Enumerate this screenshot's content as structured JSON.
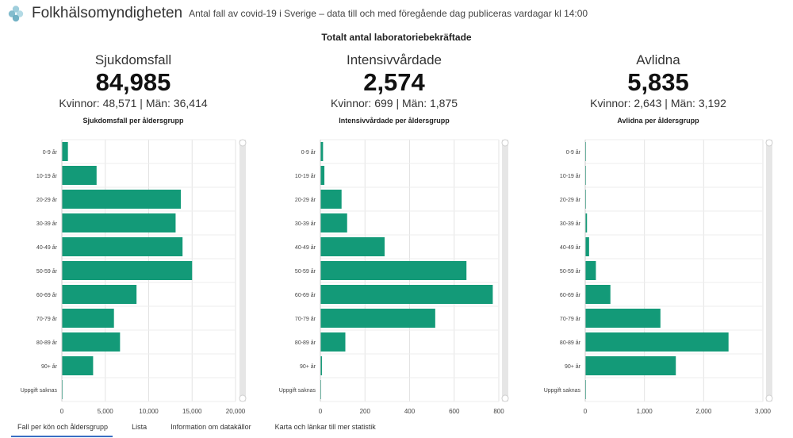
{
  "header": {
    "org_name": "Folkhälsomyndigheten",
    "subtitle": "Antal fall av covid-19 i Sverige – data till och med föregående dag publiceras vardagar kl 14:00"
  },
  "main_title": "Totalt antal laboratoriebekräftade",
  "kpis": [
    {
      "label": "Sjukdomsfall",
      "value": "84,985",
      "split": "Kvinnor: 48,571 | Män: 36,414"
    },
    {
      "label": "Intensivvårdade",
      "value": "2,574",
      "split": "Kvinnor: 699 | Män: 1,875"
    },
    {
      "label": "Avlidna",
      "value": "5,835",
      "split": "Kvinnor: 2,643 | Män: 3,192"
    }
  ],
  "panels": [
    {
      "title": "Sjukdomsfall per åldersgrupp"
    },
    {
      "title": "Intensivvårdade per åldersgrupp"
    },
    {
      "title": "Avlidna per åldersgrupp"
    }
  ],
  "tabs": [
    {
      "label": "Fall per kön och åldersgrupp",
      "active": true
    },
    {
      "label": "Lista",
      "active": false
    },
    {
      "label": "Information om datakällor",
      "active": false
    },
    {
      "label": "Karta och länkar till mer statistik",
      "active": false
    }
  ],
  "colors": {
    "bar": "#139a78",
    "grid": "#e3e3e3",
    "scrollbar": "#e6e6e6"
  },
  "chart_data": [
    {
      "type": "bar",
      "orientation": "horizontal",
      "title": "Sjukdomsfall per åldersgrupp",
      "categories": [
        "0-9 år",
        "10-19 år",
        "20-29 år",
        "30-39 år",
        "40-49 år",
        "50-59 år",
        "60-69 år",
        "70-79 år",
        "80-89 år",
        "90+ år",
        "Uppgift saknas"
      ],
      "values": [
        700,
        4000,
        13700,
        13100,
        13900,
        15000,
        8600,
        6000,
        6700,
        3600,
        80
      ],
      "xlim": [
        0,
        20000
      ],
      "xticks": [
        "0",
        "5,000",
        "10,000",
        "15,000",
        "20,000"
      ],
      "grid": true
    },
    {
      "type": "bar",
      "orientation": "horizontal",
      "title": "Intensivvårdade per åldersgrupp",
      "categories": [
        "0-9 år",
        "10-19 år",
        "20-29 år",
        "30-39 år",
        "40-49 år",
        "50-59 år",
        "60-69 år",
        "70-79 år",
        "80-89 år",
        "90+ år",
        "Uppgift saknas"
      ],
      "values": [
        12,
        18,
        95,
        120,
        288,
        655,
        773,
        515,
        112,
        7,
        2
      ],
      "xlim": [
        0,
        800
      ],
      "xticks": [
        "0",
        "200",
        "400",
        "600",
        "800"
      ],
      "grid": true
    },
    {
      "type": "bar",
      "orientation": "horizontal",
      "title": "Avlidna per åldersgrupp",
      "categories": [
        "0-9 år",
        "10-19 år",
        "20-29 år",
        "30-39 år",
        "40-49 år",
        "50-59 år",
        "60-69 år",
        "70-79 år",
        "80-89 år",
        "90+ år",
        "Uppgift saknas"
      ],
      "values": [
        2,
        2,
        10,
        30,
        65,
        180,
        425,
        1270,
        2420,
        1530,
        5
      ],
      "xlim": [
        0,
        3000
      ],
      "xticks": [
        "0",
        "1,000",
        "2,000",
        "3,000"
      ],
      "grid": true
    }
  ]
}
